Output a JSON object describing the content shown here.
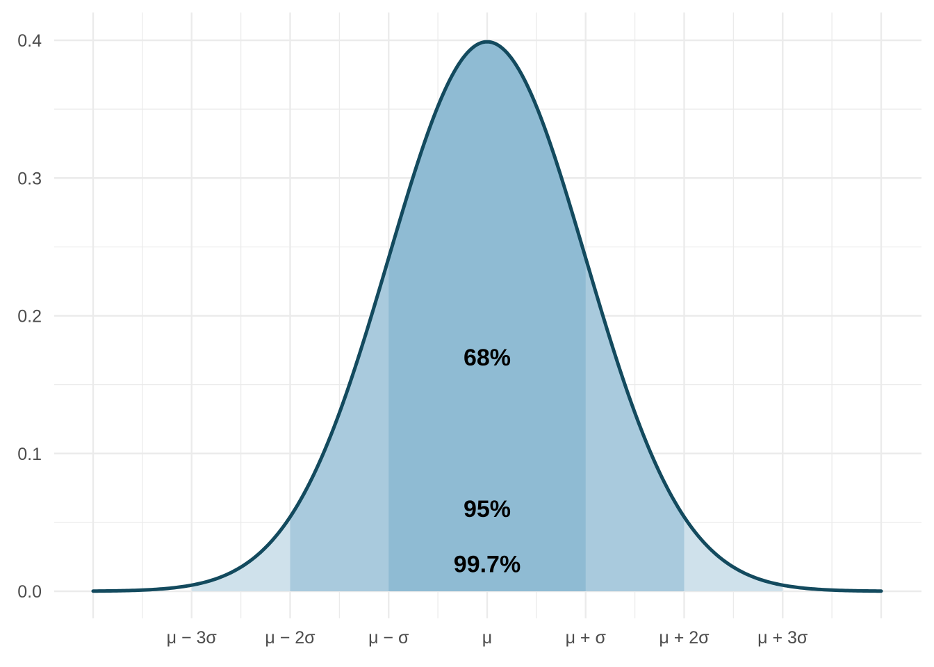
{
  "chart_data": {
    "type": "area",
    "title": "",
    "xlabel": "",
    "ylabel": "",
    "distribution": "normal",
    "mean": 0,
    "sd": 1,
    "xlim": [
      -4,
      4
    ],
    "ylim": [
      0,
      0.4
    ],
    "grid": true,
    "y_ticks": [
      {
        "value": 0.0,
        "label": "0.0"
      },
      {
        "value": 0.1,
        "label": "0.1"
      },
      {
        "value": 0.2,
        "label": "0.2"
      },
      {
        "value": 0.3,
        "label": "0.3"
      },
      {
        "value": 0.4,
        "label": "0.4"
      }
    ],
    "x_ticks": [
      {
        "value": -3,
        "label": "μ − 3σ"
      },
      {
        "value": -2,
        "label": "μ − 2σ"
      },
      {
        "value": -1,
        "label": "μ − σ"
      },
      {
        "value": 0,
        "label": "μ"
      },
      {
        "value": 1,
        "label": "μ + σ"
      },
      {
        "value": 2,
        "label": "μ + 2σ"
      },
      {
        "value": 3,
        "label": "μ + 3σ"
      }
    ],
    "regions": [
      {
        "from": -3,
        "to": 3,
        "label": "99.7%",
        "label_x": 0,
        "label_y": 0.02,
        "fill": "#cfe1eb"
      },
      {
        "from": -2,
        "to": 2,
        "label": "95%",
        "label_x": 0,
        "label_y": 0.06,
        "fill": "#a9cadd"
      },
      {
        "from": -1,
        "to": 1,
        "label": "68%",
        "label_x": 0,
        "label_y": 0.17,
        "fill": "#8fbbd3"
      }
    ],
    "curve_color": "#134a5e",
    "grid_color": "#ebebeb"
  }
}
